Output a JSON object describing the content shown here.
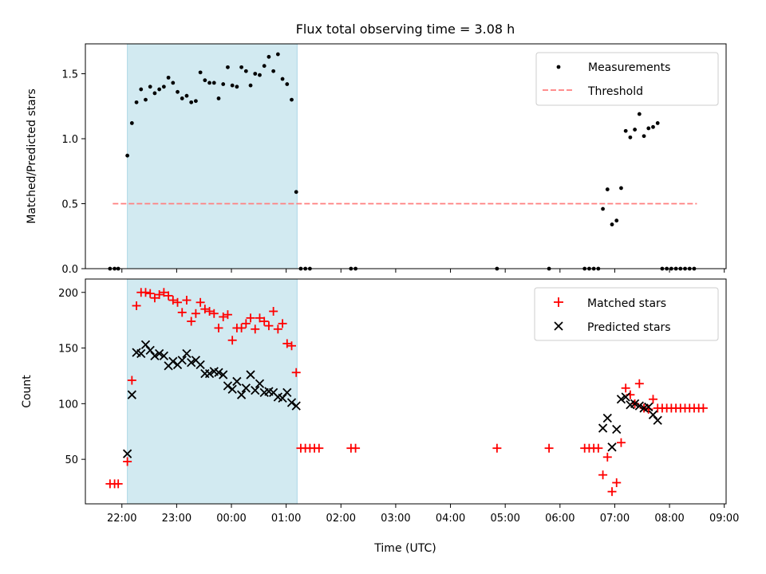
{
  "figure": {
    "title": "Flux total observing time = 3.08 h",
    "shaded_color": "#add8e6",
    "shaded_start": "22:06",
    "shaded_end": "01:12"
  },
  "chart_data": [
    {
      "type": "scatter",
      "ylabel": "Matched/Predicted stars",
      "ylim": [
        0,
        1.73
      ],
      "yticks": [
        0.0,
        0.5,
        1.0,
        1.5
      ],
      "ytick_labels": [
        "0.0",
        "0.5",
        "1.0",
        "1.5"
      ],
      "legend_position": "upper right",
      "threshold": {
        "name": "Threshold",
        "y": 0.5,
        "x_start": "21:50",
        "x_end": "08:30",
        "color": "#ff7f7f",
        "style": "dashed"
      },
      "series": [
        {
          "name": "Measurements",
          "marker": "dot",
          "color": "#000000",
          "points": [
            [
              "21:47",
              0.0
            ],
            [
              "21:52",
              0.0
            ],
            [
              "21:56",
              0.0
            ],
            [
              "22:06",
              0.87
            ],
            [
              "22:11",
              1.12
            ],
            [
              "22:16",
              1.28
            ],
            [
              "22:21",
              1.38
            ],
            [
              "22:26",
              1.3
            ],
            [
              "22:31",
              1.4
            ],
            [
              "22:36",
              1.35
            ],
            [
              "22:41",
              1.38
            ],
            [
              "22:46",
              1.4
            ],
            [
              "22:51",
              1.47
            ],
            [
              "22:56",
              1.43
            ],
            [
              "23:01",
              1.36
            ],
            [
              "23:06",
              1.31
            ],
            [
              "23:11",
              1.33
            ],
            [
              "23:16",
              1.28
            ],
            [
              "23:21",
              1.29
            ],
            [
              "23:26",
              1.51
            ],
            [
              "23:31",
              1.45
            ],
            [
              "23:36",
              1.43
            ],
            [
              "23:41",
              1.43
            ],
            [
              "23:46",
              1.31
            ],
            [
              "23:51",
              1.42
            ],
            [
              "23:56",
              1.55
            ],
            [
              "00:01",
              1.41
            ],
            [
              "00:06",
              1.4
            ],
            [
              "00:11",
              1.55
            ],
            [
              "00:16",
              1.52
            ],
            [
              "00:21",
              1.41
            ],
            [
              "00:26",
              1.5
            ],
            [
              "00:31",
              1.49
            ],
            [
              "00:36",
              1.56
            ],
            [
              "00:41",
              1.63
            ],
            [
              "00:46",
              1.52
            ],
            [
              "00:51",
              1.65
            ],
            [
              "00:56",
              1.46
            ],
            [
              "01:01",
              1.42
            ],
            [
              "01:06",
              1.3
            ],
            [
              "01:11",
              0.59
            ],
            [
              "01:16",
              0.0
            ],
            [
              "01:21",
              0.0
            ],
            [
              "01:26",
              0.0
            ],
            [
              "02:11",
              0.0
            ],
            [
              "02:16",
              0.0
            ],
            [
              "04:51",
              0.0
            ],
            [
              "05:48",
              0.0
            ],
            [
              "06:27",
              0.0
            ],
            [
              "06:32",
              0.0
            ],
            [
              "06:37",
              0.0
            ],
            [
              "06:42",
              0.0
            ],
            [
              "06:47",
              0.46
            ],
            [
              "06:52",
              0.61
            ],
            [
              "06:57",
              0.34
            ],
            [
              "07:02",
              0.37
            ],
            [
              "07:07",
              0.62
            ],
            [
              "07:12",
              1.06
            ],
            [
              "07:17",
              1.01
            ],
            [
              "07:22",
              1.07
            ],
            [
              "07:27",
              1.19
            ],
            [
              "07:32",
              1.02
            ],
            [
              "07:37",
              1.08
            ],
            [
              "07:42",
              1.09
            ],
            [
              "07:47",
              1.12
            ],
            [
              "07:52",
              0.0
            ],
            [
              "07:57",
              0.0
            ],
            [
              "08:02",
              0.0
            ],
            [
              "08:07",
              0.0
            ],
            [
              "08:12",
              0.0
            ],
            [
              "08:17",
              0.0
            ],
            [
              "08:22",
              0.0
            ],
            [
              "08:27",
              0.0
            ]
          ]
        }
      ]
    },
    {
      "type": "scatter",
      "xlabel": "Time (UTC)",
      "ylabel": "Count",
      "xlim": [
        "21:20",
        "09:02"
      ],
      "ylim": [
        10,
        212
      ],
      "xticks": [
        "22:00",
        "23:00",
        "00:00",
        "01:00",
        "02:00",
        "03:00",
        "04:00",
        "05:00",
        "06:00",
        "07:00",
        "08:00",
        "09:00"
      ],
      "yticks": [
        50,
        100,
        150,
        200
      ],
      "legend_position": "upper right",
      "series": [
        {
          "name": "Matched stars",
          "marker": "plus",
          "color": "#ff0000",
          "points": [
            [
              "21:47",
              28
            ],
            [
              "21:52",
              28
            ],
            [
              "21:56",
              28
            ],
            [
              "22:06",
              48
            ],
            [
              "22:11",
              121
            ],
            [
              "22:16",
              188
            ],
            [
              "22:21",
              200
            ],
            [
              "22:26",
              200
            ],
            [
              "22:31",
              199
            ],
            [
              "22:36",
              195
            ],
            [
              "22:41",
              198
            ],
            [
              "22:46",
              200
            ],
            [
              "22:51",
              197
            ],
            [
              "22:56",
              193
            ],
            [
              "23:01",
              191
            ],
            [
              "23:06",
              182
            ],
            [
              "23:11",
              193
            ],
            [
              "23:16",
              174
            ],
            [
              "23:21",
              181
            ],
            [
              "23:26",
              191
            ],
            [
              "23:31",
              185
            ],
            [
              "23:36",
              183
            ],
            [
              "23:41",
              181
            ],
            [
              "23:46",
              168
            ],
            [
              "23:51",
              178
            ],
            [
              "23:56",
              180
            ],
            [
              "00:01",
              157
            ],
            [
              "00:06",
              168
            ],
            [
              "00:11",
              168
            ],
            [
              "00:16",
              172
            ],
            [
              "00:21",
              177
            ],
            [
              "00:26",
              167
            ],
            [
              "00:31",
              177
            ],
            [
              "00:36",
              174
            ],
            [
              "00:41",
              170
            ],
            [
              "00:46",
              183
            ],
            [
              "00:51",
              167
            ],
            [
              "00:56",
              172
            ],
            [
              "01:01",
              154
            ],
            [
              "01:06",
              152
            ],
            [
              "01:11",
              128
            ],
            [
              "01:16",
              60
            ],
            [
              "01:21",
              60
            ],
            [
              "01:26",
              60
            ],
            [
              "01:31",
              60
            ],
            [
              "01:36",
              60
            ],
            [
              "02:11",
              60
            ],
            [
              "02:16",
              60
            ],
            [
              "04:51",
              60
            ],
            [
              "05:48",
              60
            ],
            [
              "06:27",
              60
            ],
            [
              "06:32",
              60
            ],
            [
              "06:37",
              60
            ],
            [
              "06:42",
              60
            ],
            [
              "06:47",
              36
            ],
            [
              "06:52",
              52
            ],
            [
              "06:57",
              21
            ],
            [
              "07:02",
              29
            ],
            [
              "07:07",
              65
            ],
            [
              "07:12",
              114
            ],
            [
              "07:17",
              108
            ],
            [
              "07:22",
              100
            ],
            [
              "07:27",
              118
            ],
            [
              "07:32",
              96
            ],
            [
              "07:37",
              95
            ],
            [
              "07:42",
              104
            ],
            [
              "07:47",
              96
            ],
            [
              "07:52",
              96
            ],
            [
              "07:57",
              96
            ],
            [
              "08:02",
              96
            ],
            [
              "08:07",
              96
            ],
            [
              "08:12",
              96
            ],
            [
              "08:17",
              96
            ],
            [
              "08:22",
              96
            ],
            [
              "08:27",
              96
            ],
            [
              "08:32",
              96
            ],
            [
              "08:37",
              96
            ]
          ]
        },
        {
          "name": "Predicted stars",
          "marker": "x",
          "color": "#000000",
          "points": [
            [
              "22:06",
              55
            ],
            [
              "22:11",
              108
            ],
            [
              "22:16",
              146
            ],
            [
              "22:21",
              145
            ],
            [
              "22:26",
              153
            ],
            [
              "22:31",
              148
            ],
            [
              "22:36",
              143
            ],
            [
              "22:41",
              145
            ],
            [
              "22:46",
              143
            ],
            [
              "22:51",
              134
            ],
            [
              "22:56",
              138
            ],
            [
              "23:01",
              135
            ],
            [
              "23:06",
              139
            ],
            [
              "23:11",
              145
            ],
            [
              "23:16",
              137
            ],
            [
              "23:21",
              139
            ],
            [
              "23:26",
              135
            ],
            [
              "23:31",
              127
            ],
            [
              "23:36",
              127
            ],
            [
              "23:41",
              129
            ],
            [
              "23:46",
              128
            ],
            [
              "23:51",
              126
            ],
            [
              "23:56",
              116
            ],
            [
              "00:01",
              113
            ],
            [
              "00:06",
              120
            ],
            [
              "00:11",
              108
            ],
            [
              "00:16",
              114
            ],
            [
              "00:21",
              126
            ],
            [
              "00:26",
              112
            ],
            [
              "00:31",
              118
            ],
            [
              "00:36",
              110
            ],
            [
              "00:41",
              111
            ],
            [
              "00:46",
              110
            ],
            [
              "00:51",
              106
            ],
            [
              "00:56",
              105
            ],
            [
              "01:01",
              110
            ],
            [
              "01:06",
              101
            ],
            [
              "01:11",
              98
            ],
            [
              "06:47",
              78
            ],
            [
              "06:52",
              87
            ],
            [
              "06:57",
              61
            ],
            [
              "07:02",
              77
            ],
            [
              "07:07",
              104
            ],
            [
              "07:12",
              106
            ],
            [
              "07:17",
              99
            ],
            [
              "07:22",
              100
            ],
            [
              "07:27",
              98
            ],
            [
              "07:32",
              96
            ],
            [
              "07:37",
              97
            ],
            [
              "07:42",
              90
            ],
            [
              "07:47",
              85
            ]
          ]
        }
      ]
    }
  ]
}
